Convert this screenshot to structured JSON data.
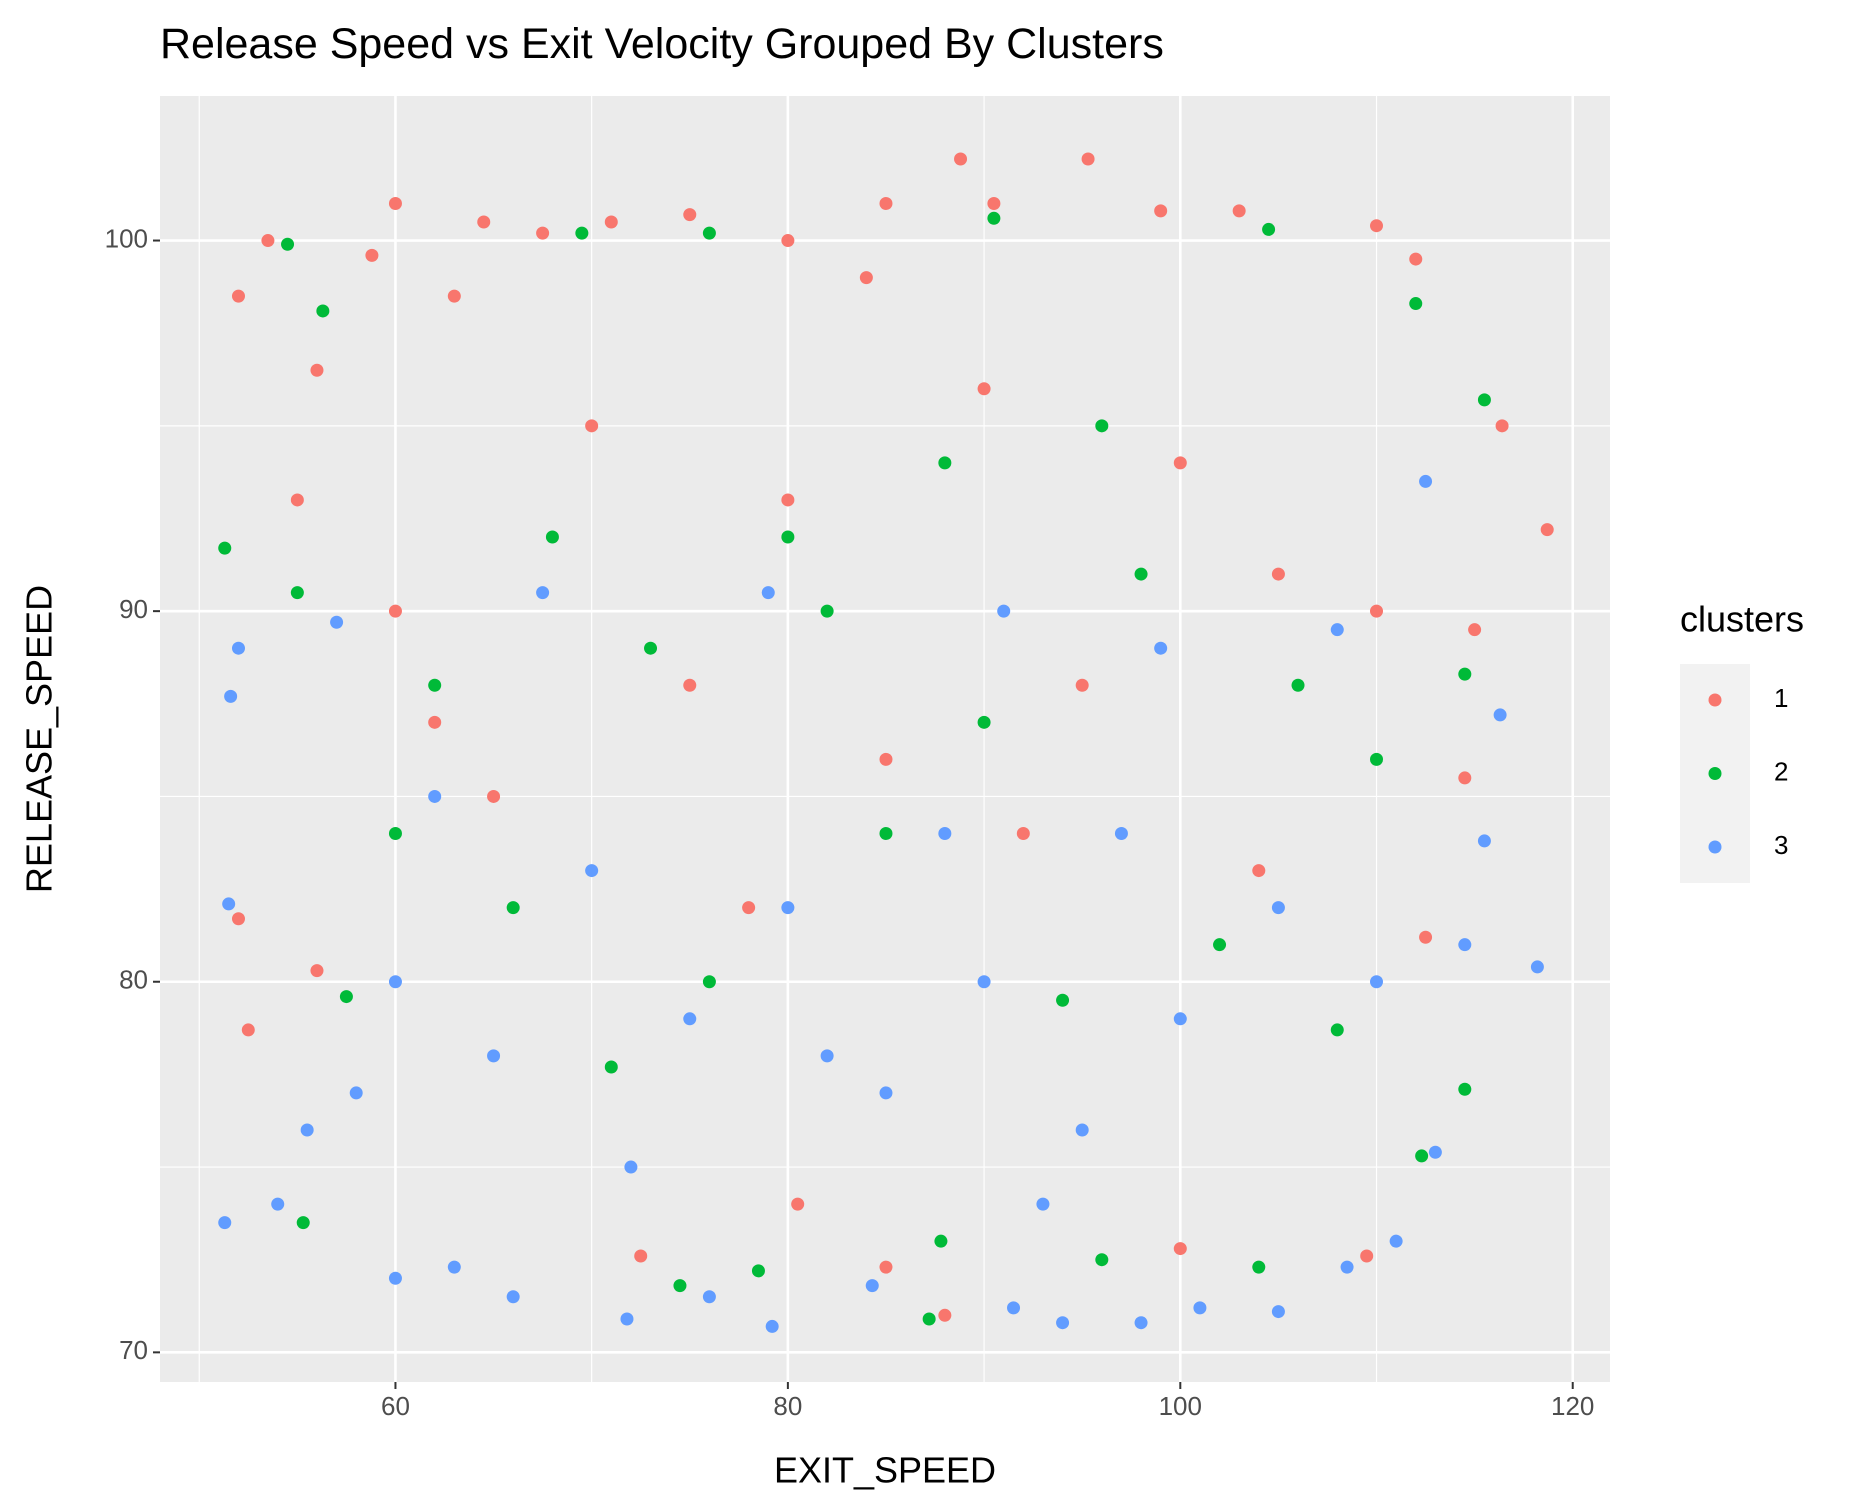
{
  "chart_data": {
    "type": "scatter",
    "title": "Release Speed vs Exit Velocity Grouped By Clusters",
    "x_label": "EXIT_SPEED",
    "y_label": "RELEASE_SPEED",
    "legend_title": "clusters",
    "legend": "right",
    "grid": true,
    "xlim": [
      48.0,
      121.9
    ],
    "ylim": [
      69.2,
      103.9
    ],
    "xticks": [
      60,
      80,
      100,
      120
    ],
    "yticks": [
      70,
      80,
      90,
      100
    ],
    "series": [
      {
        "name": "1",
        "color": "#F8766D",
        "x": [
          52,
          53.5,
          56,
          58.8,
          60,
          63,
          64.5,
          67.5,
          71,
          75,
          80,
          84,
          85,
          88.8,
          90.5,
          95.3,
          99,
          103,
          110,
          112,
          116.4,
          118.7,
          115,
          114.5,
          112.5,
          109.5,
          100,
          88,
          85,
          80.5,
          72.5,
          52,
          52.5,
          56,
          60,
          70,
          80,
          90,
          100,
          105,
          95,
          85,
          75,
          65,
          110,
          55,
          62,
          78,
          92,
          104
        ],
        "values": [
          98.5,
          100,
          96.5,
          99.6,
          101,
          98.5,
          100.5,
          100.2,
          100.5,
          100.7,
          100,
          99,
          101,
          102.2,
          101,
          102.2,
          100.8,
          100.8,
          100.4,
          99.5,
          95,
          92.2,
          89.5,
          85.5,
          81.2,
          72.6,
          72.8,
          71,
          72.3,
          74,
          72.6,
          81.7,
          78.7,
          80.3,
          90,
          95,
          93,
          96,
          94,
          91,
          88,
          86,
          88,
          85,
          90,
          93,
          87,
          82,
          84,
          83
        ]
      },
      {
        "name": "2",
        "color": "#00BA38",
        "x": [
          54.5,
          56.3,
          69.5,
          76,
          90.5,
          104.5,
          112,
          115.5,
          114.5,
          112.3,
          114.5,
          104,
          96,
          87.2,
          87.8,
          78.5,
          74.5,
          55.3,
          57.5,
          51.3,
          55,
          62,
          68,
          73,
          82,
          90,
          98,
          106,
          110,
          66,
          76,
          85,
          94,
          102,
          108,
          60,
          71,
          80,
          88,
          96
        ],
        "values": [
          99.9,
          98.1,
          100.2,
          100.2,
          100.6,
          100.3,
          98.3,
          95.7,
          88.3,
          75.3,
          77.1,
          72.3,
          72.5,
          70.9,
          73,
          72.2,
          71.8,
          73.5,
          79.6,
          91.7,
          90.5,
          88,
          92,
          89,
          90,
          87,
          91,
          88,
          86,
          82,
          80,
          84,
          79.5,
          81,
          78.7,
          84,
          77.7,
          92,
          94,
          95
        ]
      },
      {
        "name": "3",
        "color": "#619CFF",
        "x": [
          51.3,
          51.5,
          51.6,
          52,
          54,
          55.5,
          58,
          60,
          63,
          66,
          71.8,
          76,
          79.2,
          84.3,
          91.5,
          94,
          98,
          101,
          105,
          108.5,
          111,
          113,
          114.5,
          115.5,
          116.3,
          118.2,
          112.5,
          108,
          99,
          91,
          79,
          67.5,
          57,
          60,
          65,
          70,
          75,
          80,
          85,
          90,
          95,
          100,
          105,
          110,
          88,
          72,
          97,
          62,
          82,
          93
        ],
        "values": [
          73.5,
          82.1,
          87.7,
          89,
          74,
          76,
          77,
          72,
          72.3,
          71.5,
          70.9,
          71.5,
          70.7,
          71.8,
          71.2,
          70.8,
          70.8,
          71.2,
          71.1,
          72.3,
          73,
          75.4,
          81,
          83.8,
          87.2,
          80.4,
          93.5,
          89.5,
          89,
          90,
          90.5,
          90.5,
          89.7,
          80,
          78,
          83,
          79,
          82,
          77,
          80,
          76,
          79,
          82,
          80,
          84,
          75,
          84,
          85,
          78,
          74
        ]
      }
    ]
  }
}
